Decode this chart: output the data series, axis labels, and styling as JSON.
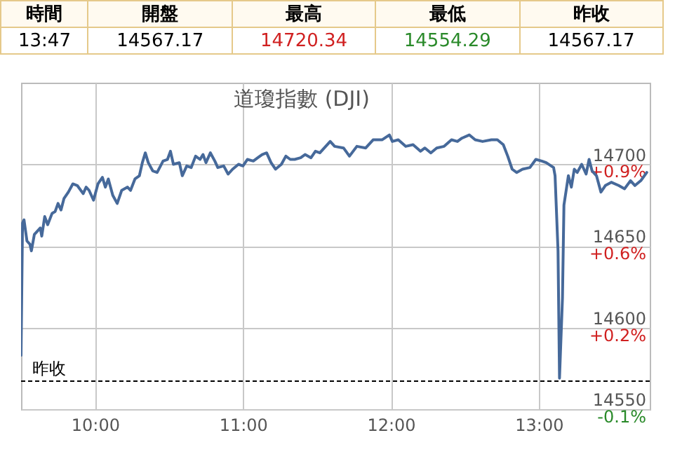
{
  "chart_data": {
    "type": "line",
    "title": "道瓊指數 (DJI)",
    "annotations": [
      "時間",
      "開盤",
      "最高",
      "最低",
      "昨收",
      "13:47",
      "14567.17",
      "14720.34",
      "14554.29",
      "14567.17"
    ],
    "x": [
      9.5,
      9.51,
      9.52,
      9.54,
      9.56,
      9.57,
      9.59,
      9.63,
      9.64,
      9.66,
      9.68,
      9.71,
      9.73,
      9.75,
      9.77,
      9.79,
      9.82,
      9.85,
      9.88,
      9.92,
      9.94,
      9.96,
      9.99,
      10.02,
      10.05,
      10.07,
      10.09,
      10.12,
      10.15,
      10.18,
      10.22,
      10.24,
      10.27,
      10.3,
      10.32,
      10.34,
      10.36,
      10.39,
      10.42,
      10.46,
      10.49,
      10.51,
      10.53,
      10.57,
      10.59,
      10.62,
      10.65,
      10.68,
      10.71,
      10.73,
      10.75,
      10.78,
      10.81,
      10.83,
      10.87,
      10.9,
      10.93,
      10.97,
      11.0,
      11.03,
      11.07,
      11.1,
      11.13,
      11.16,
      11.19,
      11.22,
      11.26,
      11.29,
      11.32,
      11.35,
      11.39,
      11.42,
      11.46,
      11.49,
      11.52,
      11.55,
      11.59,
      11.62,
      11.68,
      11.72,
      11.77,
      11.83,
      11.88,
      11.94,
      11.99,
      12.01,
      12.05,
      12.1,
      12.15,
      12.2,
      12.23,
      12.27,
      12.31,
      12.36,
      12.41,
      12.45,
      12.48,
      12.53,
      12.57,
      12.62,
      12.68,
      12.72,
      12.76,
      12.79,
      12.82,
      12.85,
      12.89,
      12.94,
      12.98,
      13.02,
      13.05,
      13.1,
      13.11,
      13.13,
      13.14,
      13.16,
      13.17,
      13.2,
      13.22,
      13.24,
      13.26,
      13.29,
      13.32,
      13.34,
      13.36,
      13.39,
      13.42,
      13.45,
      13.49,
      13.54,
      13.58,
      13.62,
      13.65,
      13.69,
      13.73
    ],
    "series": [
      {
        "color": "#46699a",
        "values": [
          14583,
          14664,
          14666,
          14653,
          14651,
          14647,
          14657,
          14661,
          14656,
          14668,
          14663,
          14670,
          14671,
          14676,
          14672,
          14679,
          14683,
          14688,
          14687,
          14682,
          14686,
          14684,
          14678,
          14688,
          14692,
          14686,
          14691,
          14681,
          14676,
          14684,
          14686,
          14684,
          14691,
          14693,
          14701,
          14707,
          14701,
          14696,
          14695,
          14702,
          14703,
          14708,
          14700,
          14701,
          14693,
          14699,
          14698,
          14705,
          14703,
          14706,
          14701,
          14707,
          14702,
          14698,
          14699,
          14694,
          14697,
          14700,
          14699,
          14703,
          14702,
          14704,
          14706,
          14707,
          14701,
          14697,
          14700,
          14705,
          14703,
          14703,
          14704,
          14706,
          14704,
          14708,
          14707,
          14710,
          14714,
          14711,
          14710,
          14705,
          14711,
          14710,
          14715,
          14715,
          14718,
          14714,
          14715,
          14711,
          14712,
          14708,
          14710,
          14707,
          14710,
          14711,
          14715,
          14714,
          14716,
          14718,
          14715,
          14714,
          14715,
          14715,
          14712,
          14705,
          14697,
          14695,
          14697,
          14698,
          14703,
          14702,
          14701,
          14698,
          14693,
          14647,
          14569,
          14618,
          14675,
          14693,
          14686,
          14697,
          14695,
          14700,
          14694,
          14703,
          14696,
          14693,
          14683,
          14687,
          14689,
          14687,
          14685,
          14690,
          14687,
          14690,
          14695
        ]
      }
    ],
    "xlim": [
      9.5,
      13.75
    ],
    "xticks": [
      {
        "value": 10,
        "label": "10:00"
      },
      {
        "value": 11,
        "label": "11:00"
      },
      {
        "value": 12,
        "label": "12:00"
      },
      {
        "value": 13,
        "label": "13:00"
      }
    ],
    "ylim": [
      14550,
      14750
    ],
    "yticks": [
      14550,
      14600,
      14650,
      14700
    ],
    "y2lim": [
      -0.118,
      1.255
    ],
    "y2ticks": [
      {
        "value": -0.118,
        "label": "-0.1%"
      },
      {
        "value": 0.225,
        "label": "+0.2%"
      },
      {
        "value": 0.569,
        "label": "+0.6%"
      },
      {
        "value": 0.912,
        "label": "+0.9%"
      }
    ],
    "ref_lines": [
      {
        "axis": "y",
        "value": 14567.17,
        "label": "昨收",
        "color": "#000000",
        "line_style": "dashed"
      }
    ],
    "grid": true
  }
}
